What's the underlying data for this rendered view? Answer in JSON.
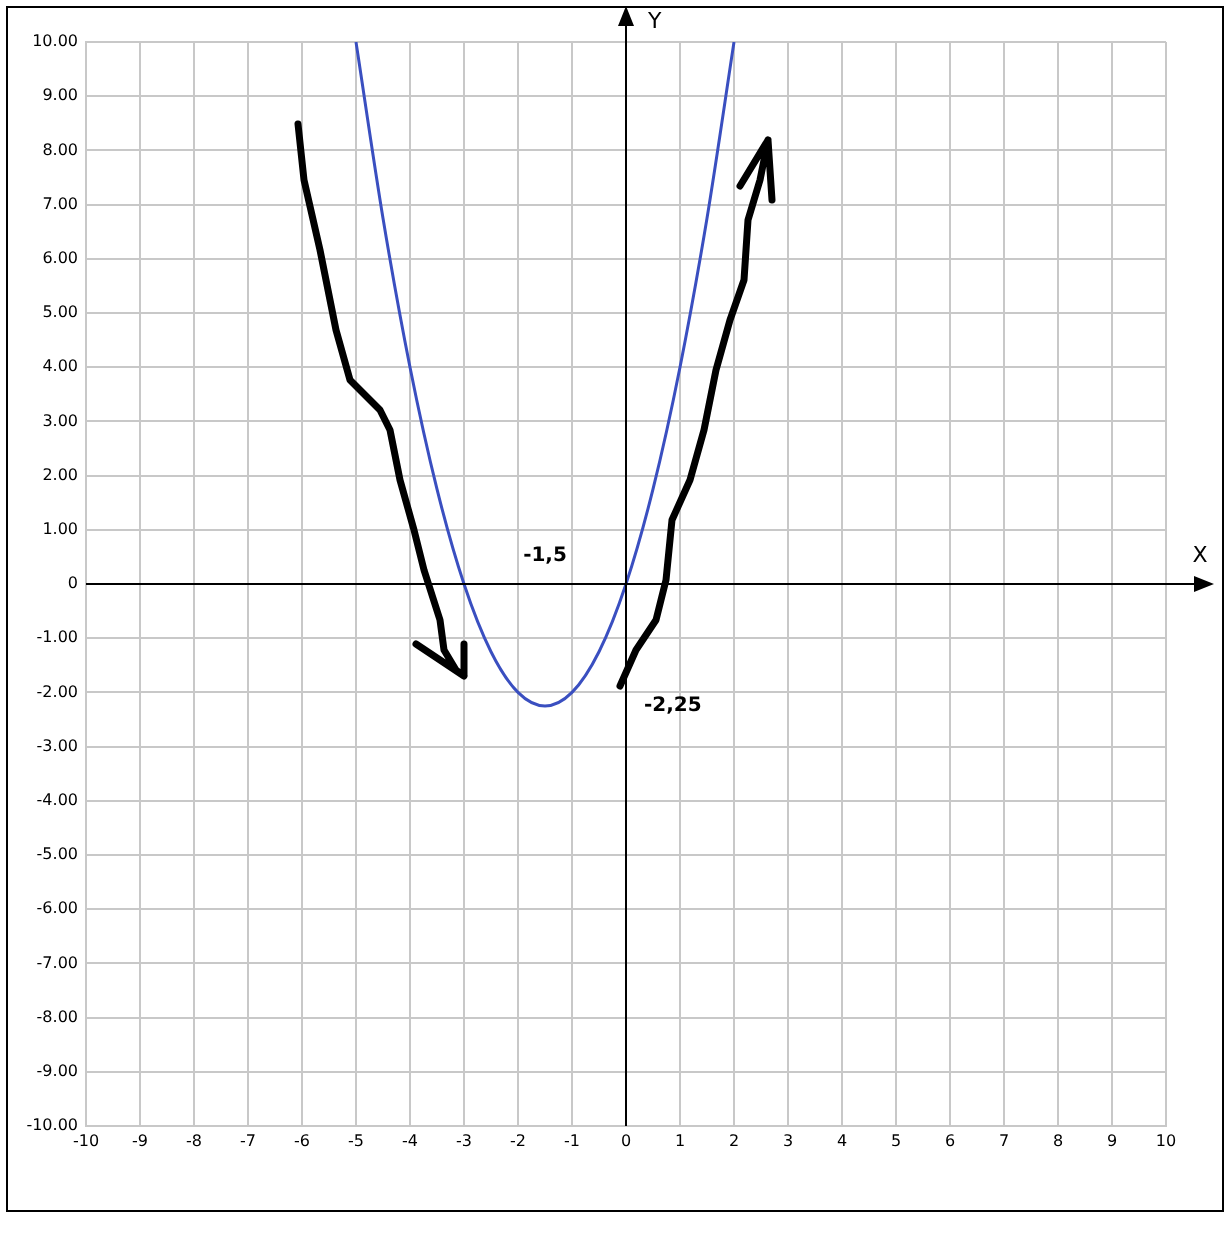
{
  "chart_data": {
    "type": "line",
    "xlabel": "X",
    "ylabel": "Y",
    "x": [
      -5,
      -4.5,
      -4,
      -3.5,
      -3,
      -2.5,
      -2,
      -1.5,
      -1,
      -0.5,
      0,
      0.5,
      1,
      1.5,
      2
    ],
    "series": [
      {
        "color": "#3a4fc0",
        "values": [
          10,
          6.75,
          4,
          1.75,
          0,
          -1.25,
          -2,
          -2.25,
          -2,
          -1.25,
          0,
          1.75,
          4,
          6.75,
          10
        ]
      }
    ],
    "xlim": [
      -10,
      10
    ],
    "ylim": [
      -10,
      10
    ],
    "xticks": [
      -10,
      -9,
      -8,
      -7,
      -6,
      -5,
      -4,
      -3,
      -2,
      -1,
      0,
      1,
      2,
      3,
      4,
      5,
      6,
      7,
      8,
      9,
      10
    ],
    "yticks": [
      {
        "value": -10,
        "label": "-10.00"
      },
      {
        "value": -9,
        "label": "-9.00"
      },
      {
        "value": -8,
        "label": "-8.00"
      },
      {
        "value": -7,
        "label": "-7.00"
      },
      {
        "value": -6,
        "label": "-6.00"
      },
      {
        "value": -5,
        "label": "-5.00"
      },
      {
        "value": -4,
        "label": "-4.00"
      },
      {
        "value": -3,
        "label": "-3.00"
      },
      {
        "value": -2,
        "label": "-2.00"
      },
      {
        "value": -1,
        "label": "-1.00"
      },
      0,
      {
        "value": 1,
        "label": "1.00"
      },
      {
        "value": 2,
        "label": "2.00"
      },
      {
        "value": 3,
        "label": "3.00"
      },
      {
        "value": 4,
        "label": "4.00"
      },
      {
        "value": 5,
        "label": "5.00"
      },
      {
        "value": 6,
        "label": "6.00"
      },
      {
        "value": 7,
        "label": "7.00"
      },
      {
        "value": 8,
        "label": "8.00"
      },
      {
        "value": 9,
        "label": "9.00"
      },
      {
        "value": 10,
        "label": "10.00"
      }
    ],
    "annotations": [
      "-1,5",
      "-2,25"
    ],
    "grid": true,
    "legend": false,
    "marker": "none",
    "line_style": "solid"
  }
}
